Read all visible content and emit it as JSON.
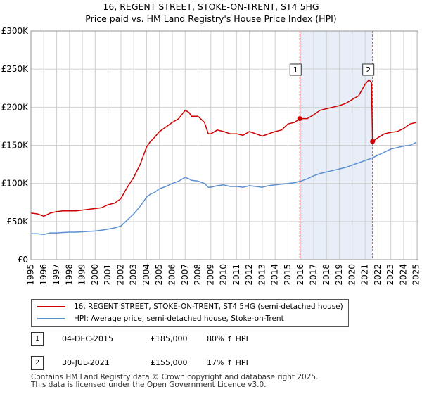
{
  "chart_data": {
    "type": "line",
    "title": "16, REGENT STREET, STOKE-ON-TRENT, ST4 5HG",
    "subtitle": "Price paid vs. HM Land Registry's House Price Index (HPI)",
    "xlim": [
      1995,
      2025.1
    ],
    "ylim": [
      0,
      300000
    ],
    "ytick_values": [
      0,
      50000,
      100000,
      150000,
      200000,
      250000,
      300000
    ],
    "ytick_labels": [
      "£0",
      "£50K",
      "£100K",
      "£150K",
      "£200K",
      "£250K",
      "£300K"
    ],
    "xtick_labels": [
      "1995",
      "1996",
      "1997",
      "1998",
      "1999",
      "2000",
      "2001",
      "2002",
      "2003",
      "2004",
      "2005",
      "2006",
      "2007",
      "2008",
      "2009",
      "2010",
      "2011",
      "2012",
      "2013",
      "2014",
      "2015",
      "2016",
      "2017",
      "2018",
      "2019",
      "2020",
      "2021",
      "2022",
      "2023",
      "2024",
      "2025"
    ],
    "shaded_region": [
      2015.92,
      2021.58
    ],
    "series": [
      {
        "name": "16, REGENT STREET, STOKE-ON-TRENT, ST4 5HG (semi-detached house)",
        "color": "#cc0000",
        "x": [
          1995,
          1995.5,
          1996,
          1996.5,
          1997,
          1997.5,
          1998,
          1998.5,
          1999,
          1999.5,
          2000,
          2000.5,
          2001,
          2001.5,
          2002,
          2002.5,
          2003,
          2003.5,
          2004,
          2004.3,
          2004.6,
          2005,
          2005.5,
          2006,
          2006.5,
          2007,
          2007.3,
          2007.5,
          2008,
          2008.5,
          2008.8,
          2009,
          2009.5,
          2010,
          2010.5,
          2011,
          2011.5,
          2012,
          2012.5,
          2013,
          2013.5,
          2014,
          2014.5,
          2015,
          2015.5,
          2015.92,
          2016.5,
          2017,
          2017.5,
          2018,
          2018.5,
          2019,
          2019.5,
          2020,
          2020.5,
          2021,
          2021.3,
          2021.5,
          2021.58,
          2022,
          2022.5,
          2023,
          2023.5,
          2024,
          2024.5,
          2025
        ],
        "values": [
          61000,
          60000,
          57000,
          61000,
          63000,
          64000,
          64000,
          64000,
          65000,
          66000,
          67000,
          68000,
          72000,
          74000,
          80000,
          95000,
          108000,
          125000,
          148000,
          155000,
          160000,
          168000,
          174000,
          180000,
          185000,
          196000,
          193000,
          188000,
          188000,
          180000,
          165000,
          165000,
          170000,
          168000,
          165000,
          165000,
          163000,
          168000,
          165000,
          162000,
          165000,
          168000,
          170000,
          178000,
          180000,
          185000,
          185000,
          190000,
          196000,
          198000,
          200000,
          202000,
          205000,
          210000,
          215000,
          230000,
          236000,
          232000,
          155000,
          160000,
          165000,
          167000,
          168000,
          172000,
          178000,
          180000
        ]
      },
      {
        "name": "HPI: Average price, semi-detached house, Stoke-on-Trent",
        "color": "#5b8fcf",
        "x": [
          1995,
          1995.5,
          1996,
          1996.5,
          1997,
          1997.5,
          1998,
          1998.5,
          1999,
          1999.5,
          2000,
          2000.5,
          2001,
          2001.5,
          2002,
          2002.5,
          2003,
          2003.5,
          2004,
          2004.3,
          2004.6,
          2005,
          2005.5,
          2006,
          2006.5,
          2007,
          2007.3,
          2007.5,
          2008,
          2008.5,
          2008.8,
          2009,
          2009.5,
          2010,
          2010.5,
          2011,
          2011.5,
          2012,
          2012.5,
          2013,
          2013.5,
          2014,
          2014.5,
          2015,
          2015.5,
          2016,
          2016.5,
          2017,
          2017.5,
          2018,
          2018.5,
          2019,
          2019.5,
          2020,
          2020.5,
          2021,
          2021.5,
          2022,
          2022.5,
          2023,
          2023.5,
          2024,
          2024.5,
          2025
        ],
        "values": [
          34000,
          34000,
          33000,
          35000,
          35000,
          35500,
          36000,
          36000,
          36500,
          37000,
          37500,
          38500,
          40000,
          41500,
          44000,
          52000,
          60000,
          70000,
          82000,
          86000,
          88000,
          93000,
          96000,
          100000,
          103000,
          108000,
          106000,
          104000,
          103000,
          100000,
          95000,
          95000,
          97000,
          98000,
          96000,
          96000,
          95000,
          97000,
          96000,
          95000,
          97000,
          98000,
          99000,
          100000,
          101000,
          103000,
          106000,
          110000,
          113000,
          115000,
          117000,
          119000,
          121000,
          124000,
          127000,
          130000,
          133000,
          137000,
          141000,
          145000,
          147000,
          149000,
          150000,
          154000
        ]
      }
    ],
    "sales": [
      {
        "label": "1",
        "x": 2015.92,
        "value": 185000
      },
      {
        "label": "2",
        "x": 2021.58,
        "value": 155000
      }
    ]
  },
  "legend": {
    "property_label": "16, REGENT STREET, STOKE-ON-TRENT, ST4 5HG (semi-detached house)",
    "hpi_label": "HPI: Average price, semi-detached house, Stoke-on-Trent"
  },
  "sales_table": [
    {
      "num": "1",
      "date": "04-DEC-2015",
      "price": "£185,000",
      "hpi": "80% ↑ HPI"
    },
    {
      "num": "2",
      "date": "30-JUL-2021",
      "price": "£155,000",
      "hpi": "17% ↑ HPI"
    }
  ],
  "footer": {
    "line1": "Contains HM Land Registry data © Crown copyright and database right 2025.",
    "line2": "This data is licensed under the Open Government Licence v3.0."
  }
}
